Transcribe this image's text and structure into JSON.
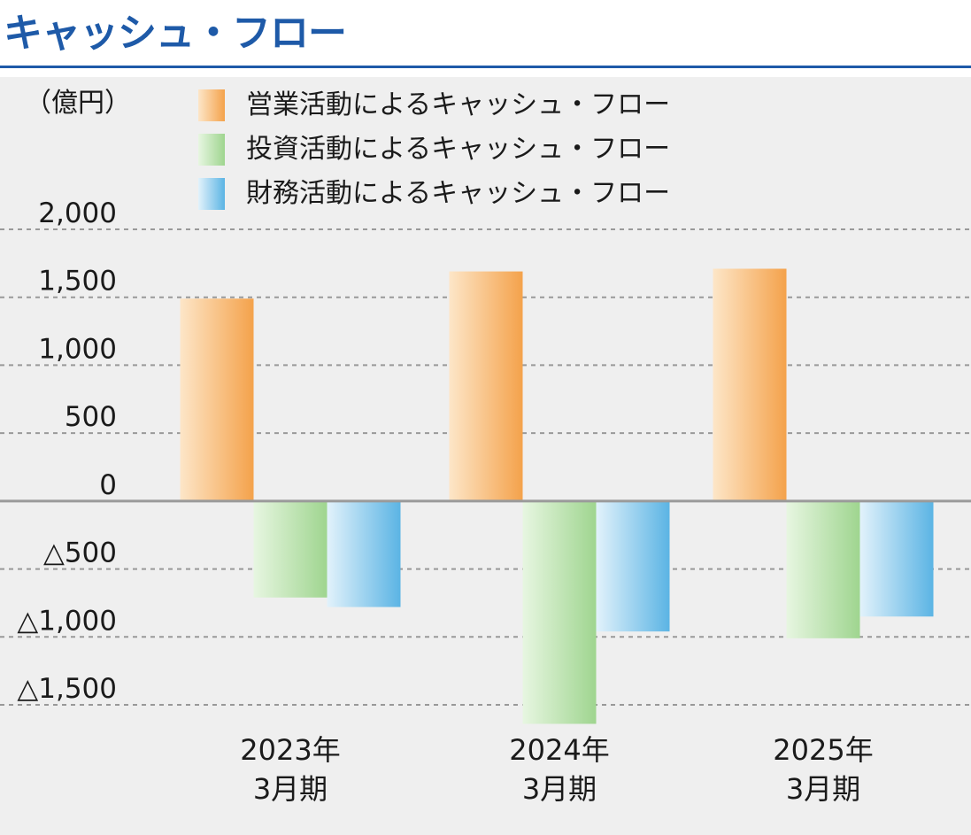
{
  "title": "キャッシュ・フロー",
  "colors": {
    "title": "#1e5aa8",
    "operating": "#f4a24b",
    "investing": "#9fd58f",
    "financing": "#5bb4e4",
    "grid": "#999999",
    "zero_line": "#9a9a9a",
    "panel": "#efefef"
  },
  "chart_data": {
    "type": "bar",
    "unit_label": "（億円）",
    "categories": [
      "2023年\n3月期",
      "2024年\n3月期",
      "2025年\n3月期"
    ],
    "series": [
      {
        "name": "営業活動によるキャッシュ・フロー",
        "color_key": "operating",
        "values": [
          1490,
          1690,
          1710
        ]
      },
      {
        "name": "投資活動によるキャッシュ・フロー",
        "color_key": "investing",
        "values": [
          -710,
          -1640,
          -1010
        ]
      },
      {
        "name": "財務活動によるキャッシュ・フロー",
        "color_key": "financing",
        "values": [
          -780,
          -960,
          -850
        ]
      }
    ],
    "ylim": [
      -1500,
      2000
    ],
    "yticks": [
      {
        "value": 2000,
        "label": "2,000"
      },
      {
        "value": 1500,
        "label": "1,500"
      },
      {
        "value": 1000,
        "label": "1,000"
      },
      {
        "value": 500,
        "label": "500"
      },
      {
        "value": 0,
        "label": "0"
      },
      {
        "value": -500,
        "label": "△500"
      },
      {
        "value": -1000,
        "label": "△1,000"
      },
      {
        "value": -1500,
        "label": "△1,500"
      }
    ],
    "grid": "dashed",
    "legend_position": "top"
  }
}
